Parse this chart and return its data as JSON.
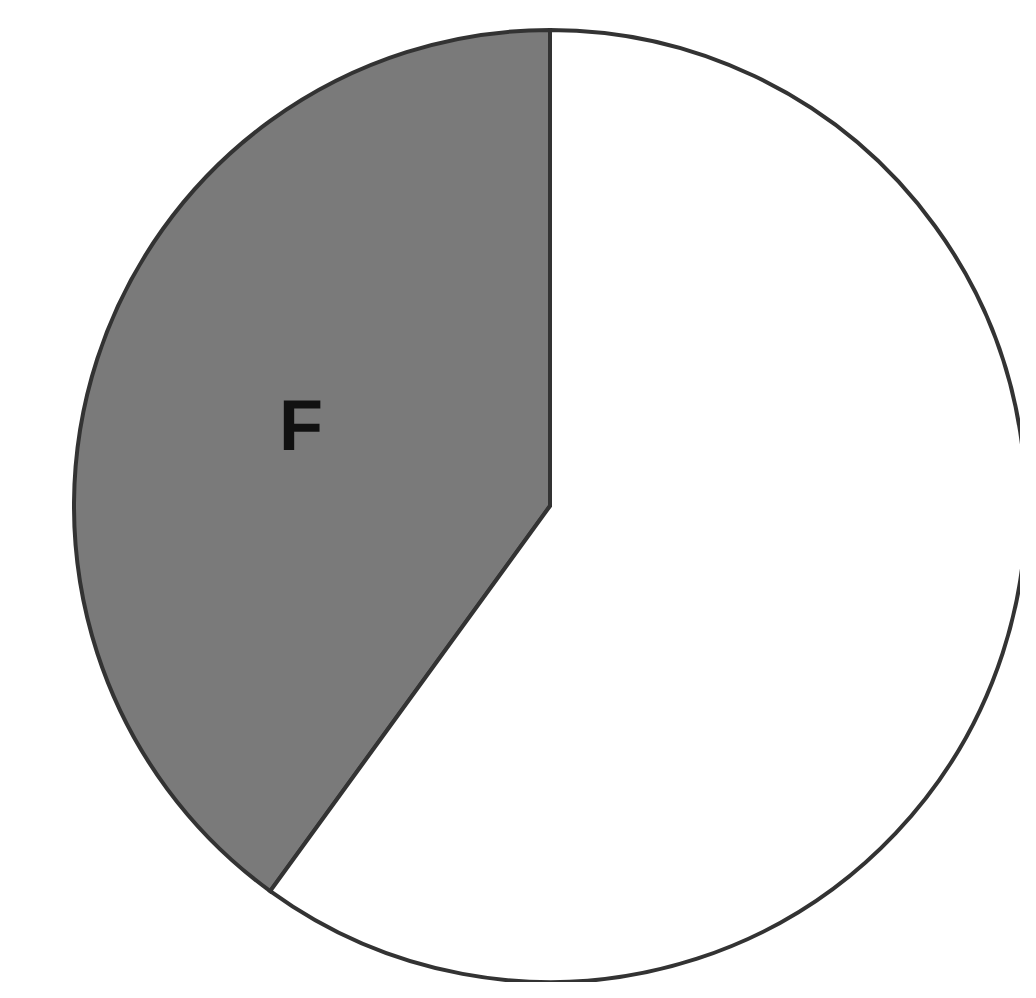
{
  "chart_data": {
    "type": "pie",
    "categories": [
      "F",
      null
    ],
    "values": [
      40,
      60
    ],
    "colors": [
      "#7a7a7a",
      "#ffffff"
    ]
  }
}
